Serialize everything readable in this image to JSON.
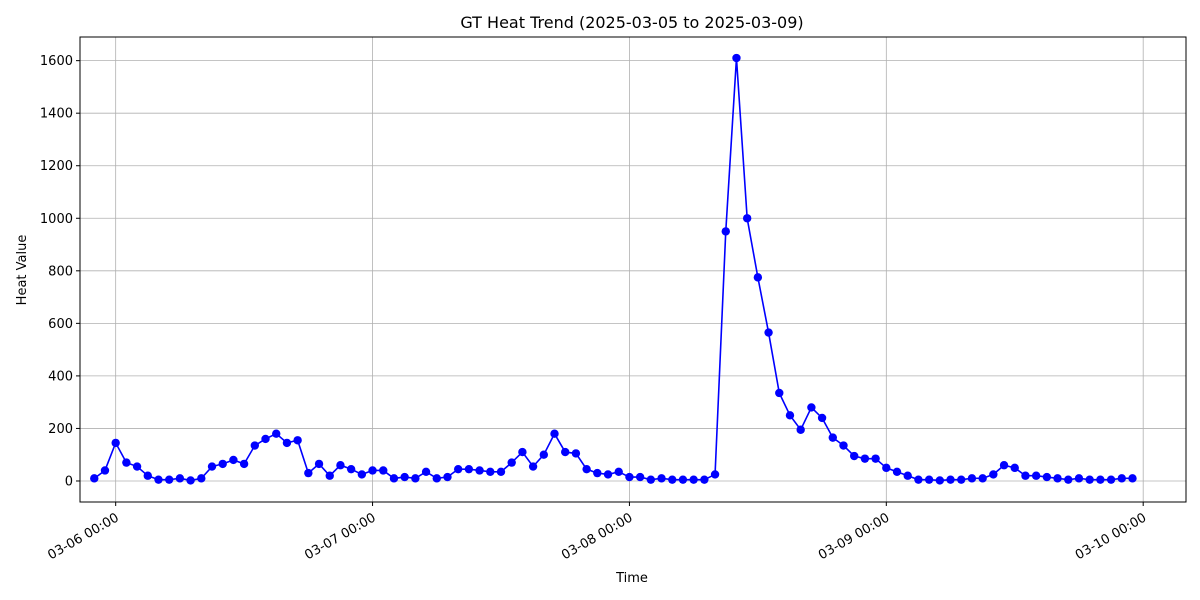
{
  "chart_data": {
    "type": "line",
    "title": "GT Heat Trend (2025-03-05 to 2025-03-09)",
    "xlabel": "Time",
    "ylabel": "Heat Value",
    "grid": true,
    "line_color": "#0000ff",
    "marker": "circle",
    "xlim": [
      "2025-03-05 20:40",
      "2025-03-10 04:00"
    ],
    "ylim": [
      -80,
      1690
    ],
    "x_ticks": [
      {
        "value": "2025-03-06 00:00",
        "label": "03-06 00:00"
      },
      {
        "value": "2025-03-07 00:00",
        "label": "03-07 00:00"
      },
      {
        "value": "2025-03-08 00:00",
        "label": "03-08 00:00"
      },
      {
        "value": "2025-03-09 00:00",
        "label": "03-09 00:00"
      },
      {
        "value": "2025-03-10 00:00",
        "label": "03-10 00:00"
      }
    ],
    "y_ticks": [
      0,
      200,
      400,
      600,
      800,
      1000,
      1200,
      1400,
      1600
    ],
    "x": [
      "2025-03-05 22:00",
      "2025-03-05 23:00",
      "2025-03-06 00:00",
      "2025-03-06 01:00",
      "2025-03-06 02:00",
      "2025-03-06 03:00",
      "2025-03-06 04:00",
      "2025-03-06 05:00",
      "2025-03-06 06:00",
      "2025-03-06 07:00",
      "2025-03-06 08:00",
      "2025-03-06 09:00",
      "2025-03-06 10:00",
      "2025-03-06 11:00",
      "2025-03-06 12:00",
      "2025-03-06 13:00",
      "2025-03-06 14:00",
      "2025-03-06 15:00",
      "2025-03-06 16:00",
      "2025-03-06 17:00",
      "2025-03-06 18:00",
      "2025-03-06 19:00",
      "2025-03-06 20:00",
      "2025-03-06 21:00",
      "2025-03-06 22:00",
      "2025-03-06 23:00",
      "2025-03-07 00:00",
      "2025-03-07 01:00",
      "2025-03-07 02:00",
      "2025-03-07 03:00",
      "2025-03-07 04:00",
      "2025-03-07 05:00",
      "2025-03-07 06:00",
      "2025-03-07 07:00",
      "2025-03-07 08:00",
      "2025-03-07 09:00",
      "2025-03-07 10:00",
      "2025-03-07 11:00",
      "2025-03-07 12:00",
      "2025-03-07 13:00",
      "2025-03-07 14:00",
      "2025-03-07 15:00",
      "2025-03-07 16:00",
      "2025-03-07 17:00",
      "2025-03-07 18:00",
      "2025-03-07 19:00",
      "2025-03-07 20:00",
      "2025-03-07 21:00",
      "2025-03-07 22:00",
      "2025-03-07 23:00",
      "2025-03-08 00:00",
      "2025-03-08 01:00",
      "2025-03-08 02:00",
      "2025-03-08 03:00",
      "2025-03-08 04:00",
      "2025-03-08 05:00",
      "2025-03-08 06:00",
      "2025-03-08 07:00",
      "2025-03-08 08:00",
      "2025-03-08 09:00",
      "2025-03-08 10:00",
      "2025-03-08 11:00",
      "2025-03-08 12:00",
      "2025-03-08 13:00",
      "2025-03-08 14:00",
      "2025-03-08 15:00",
      "2025-03-08 16:00",
      "2025-03-08 17:00",
      "2025-03-08 18:00",
      "2025-03-08 19:00",
      "2025-03-08 20:00",
      "2025-03-08 21:00",
      "2025-03-08 22:00",
      "2025-03-08 23:00",
      "2025-03-09 00:00",
      "2025-03-09 01:00",
      "2025-03-09 02:00",
      "2025-03-09 03:00",
      "2025-03-09 04:00",
      "2025-03-09 05:00",
      "2025-03-09 06:00",
      "2025-03-09 07:00",
      "2025-03-09 08:00",
      "2025-03-09 09:00",
      "2025-03-09 10:00",
      "2025-03-09 11:00",
      "2025-03-09 12:00",
      "2025-03-09 13:00",
      "2025-03-09 14:00",
      "2025-03-09 15:00",
      "2025-03-09 16:00",
      "2025-03-09 17:00",
      "2025-03-09 18:00",
      "2025-03-09 19:00",
      "2025-03-09 20:00",
      "2025-03-09 21:00",
      "2025-03-09 22:00",
      "2025-03-09 23:00"
    ],
    "series": [
      {
        "values": [
          10,
          40,
          145,
          70,
          55,
          20,
          5,
          5,
          10,
          2,
          10,
          55,
          65,
          80,
          65,
          135,
          160,
          180,
          145,
          155,
          30,
          65,
          20,
          60,
          45,
          25,
          40,
          40,
          10,
          15,
          10,
          35,
          10,
          15,
          45,
          45,
          40,
          35,
          35,
          70,
          110,
          55,
          100,
          180,
          110,
          105,
          45,
          30,
          25,
          35,
          15,
          15,
          5,
          10,
          5,
          5,
          5,
          5,
          25,
          950,
          1610,
          1000,
          775,
          565,
          335,
          250,
          195,
          280,
          240,
          165,
          135,
          95,
          85,
          85,
          50,
          35,
          20,
          5,
          5,
          2,
          5,
          5,
          10,
          10,
          25,
          60,
          50,
          20,
          20,
          15,
          10,
          5,
          10,
          5,
          5,
          5,
          10,
          10
        ]
      }
    ]
  }
}
